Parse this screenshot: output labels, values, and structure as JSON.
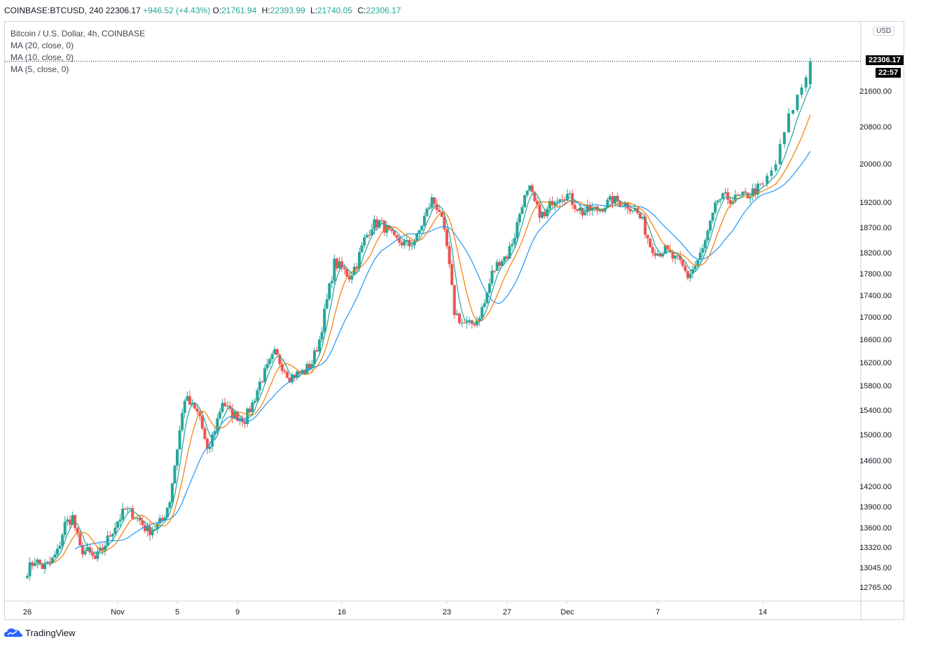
{
  "header": {
    "symbol": "COINBASE:BTCUSD, 240",
    "last": "22306.17",
    "change": "+946.52 (+4.43%)",
    "open_label": "O:",
    "open": "21761.94",
    "high_label": "H:",
    "high": "22393.99",
    "low_label": "L:",
    "low": "21740.05",
    "close_label": "C:",
    "close": "22306.17"
  },
  "legend": {
    "title": "Bitcoin / U.S. Dollar, 4h, COINBASE",
    "ma20": "MA (20, close, 0)",
    "ma10": "MA (10, close, 0)",
    "ma5": "MA (5, close, 0)"
  },
  "price_axis": {
    "currency": "USD",
    "last_price": "22306.17",
    "countdown": "22:57"
  },
  "branding": {
    "name": "TradingView"
  },
  "colors": {
    "up": "#26a69a",
    "down": "#ef5350",
    "ma5": "#26a69a",
    "ma10": "#f57c00",
    "ma20": "#2196f3",
    "axis_text": "#131722",
    "grid": "#cfd3da"
  },
  "chart_data": {
    "type": "candlestick",
    "title": "Bitcoin / U.S. Dollar, 4h, COINBASE",
    "interval": "4h",
    "ylim": [
      12600,
      23750
    ],
    "y_ticks": [
      "12765.00",
      "13045.00",
      "13320.00",
      "13600.00",
      "13900.00",
      "14200.00",
      "14600.00",
      "15000.00",
      "15400.00",
      "15800.00",
      "16200.00",
      "16600.00",
      "17000.00",
      "17400.00",
      "17800.00",
      "18200.00",
      "18700.00",
      "19200.00",
      "20000.00",
      "20800.00",
      "21600.00"
    ],
    "x_ticks": [
      "26",
      "Nov",
      "5",
      "9",
      "16",
      "23",
      "27",
      "Dec",
      "7",
      "14"
    ],
    "x_tick_days": [
      0,
      6,
      10,
      14,
      21,
      28,
      32,
      36,
      42,
      49
    ],
    "close_path": [
      [
        0.0,
        13000
      ],
      [
        0.5,
        13150
      ],
      [
        1.0,
        13050
      ],
      [
        1.5,
        13100
      ],
      [
        2.0,
        13250
      ],
      [
        2.5,
        13650
      ],
      [
        3.0,
        13750
      ],
      [
        3.5,
        13300
      ],
      [
        4.0,
        13250
      ],
      [
        4.5,
        13150
      ],
      [
        5.0,
        13300
      ],
      [
        5.5,
        13500
      ],
      [
        6.0,
        13700
      ],
      [
        6.5,
        13850
      ],
      [
        7.0,
        13800
      ],
      [
        7.5,
        13700
      ],
      [
        8.0,
        13550
      ],
      [
        8.5,
        13600
      ],
      [
        9.0,
        13700
      ],
      [
        9.5,
        14000
      ],
      [
        10.0,
        14800
      ],
      [
        10.5,
        15600
      ],
      [
        11.0,
        15450
      ],
      [
        11.5,
        15300
      ],
      [
        12.0,
        14700
      ],
      [
        12.5,
        15100
      ],
      [
        13.0,
        15550
      ],
      [
        13.5,
        15350
      ],
      [
        14.0,
        15300
      ],
      [
        14.5,
        15250
      ],
      [
        15.0,
        15500
      ],
      [
        15.5,
        15850
      ],
      [
        16.0,
        16100
      ],
      [
        16.5,
        16350
      ],
      [
        17.0,
        16150
      ],
      [
        17.5,
        15950
      ],
      [
        18.0,
        16000
      ],
      [
        18.5,
        16050
      ],
      [
        19.0,
        16200
      ],
      [
        19.5,
        16600
      ],
      [
        20.0,
        17300
      ],
      [
        20.5,
        18000
      ],
      [
        21.0,
        17900
      ],
      [
        21.5,
        17750
      ],
      [
        22.0,
        18000
      ],
      [
        22.5,
        18450
      ],
      [
        23.0,
        18750
      ],
      [
        23.5,
        18800
      ],
      [
        24.0,
        18650
      ],
      [
        24.5,
        18450
      ],
      [
        25.0,
        18400
      ],
      [
        25.5,
        18350
      ],
      [
        26.0,
        18500
      ],
      [
        26.5,
        18900
      ],
      [
        27.0,
        19250
      ],
      [
        27.5,
        19050
      ],
      [
        28.0,
        18300
      ],
      [
        28.5,
        17100
      ],
      [
        29.0,
        16900
      ],
      [
        29.5,
        16850
      ],
      [
        30.0,
        16950
      ],
      [
        30.5,
        17250
      ],
      [
        31.0,
        17800
      ],
      [
        31.5,
        18050
      ],
      [
        32.0,
        18150
      ],
      [
        32.5,
        18550
      ],
      [
        33.0,
        19200
      ],
      [
        33.5,
        19450
      ],
      [
        34.0,
        19050
      ],
      [
        34.5,
        18900
      ],
      [
        35.0,
        19250
      ],
      [
        35.5,
        19350
      ],
      [
        36.0,
        19350
      ],
      [
        36.5,
        19150
      ],
      [
        37.0,
        19000
      ],
      [
        37.5,
        19050
      ],
      [
        38.0,
        19050
      ],
      [
        38.5,
        19150
      ],
      [
        39.0,
        19250
      ],
      [
        39.5,
        19200
      ],
      [
        40.0,
        19150
      ],
      [
        40.5,
        19050
      ],
      [
        41.0,
        18800
      ],
      [
        41.5,
        18350
      ],
      [
        42.0,
        18200
      ],
      [
        42.5,
        18250
      ],
      [
        43.0,
        18100
      ],
      [
        43.5,
        18000
      ],
      [
        44.0,
        17750
      ],
      [
        44.5,
        17950
      ],
      [
        45.0,
        18250
      ],
      [
        45.5,
        18750
      ],
      [
        46.0,
        19250
      ],
      [
        46.5,
        19300
      ],
      [
        47.0,
        19250
      ],
      [
        47.5,
        19300
      ],
      [
        48.0,
        19350
      ],
      [
        48.5,
        19450
      ],
      [
        49.0,
        19550
      ],
      [
        49.5,
        20000
      ],
      [
        50.0,
        21000
      ],
      [
        50.5,
        21700
      ],
      [
        50.9,
        22306.17
      ]
    ],
    "last": 22306.17,
    "series": [
      {
        "name": "MA (5, close, 0)",
        "color": "#26a69a"
      },
      {
        "name": "MA (10, close, 0)",
        "color": "#f57c00"
      },
      {
        "name": "MA (20, close, 0)",
        "color": "#2196f3"
      }
    ]
  }
}
